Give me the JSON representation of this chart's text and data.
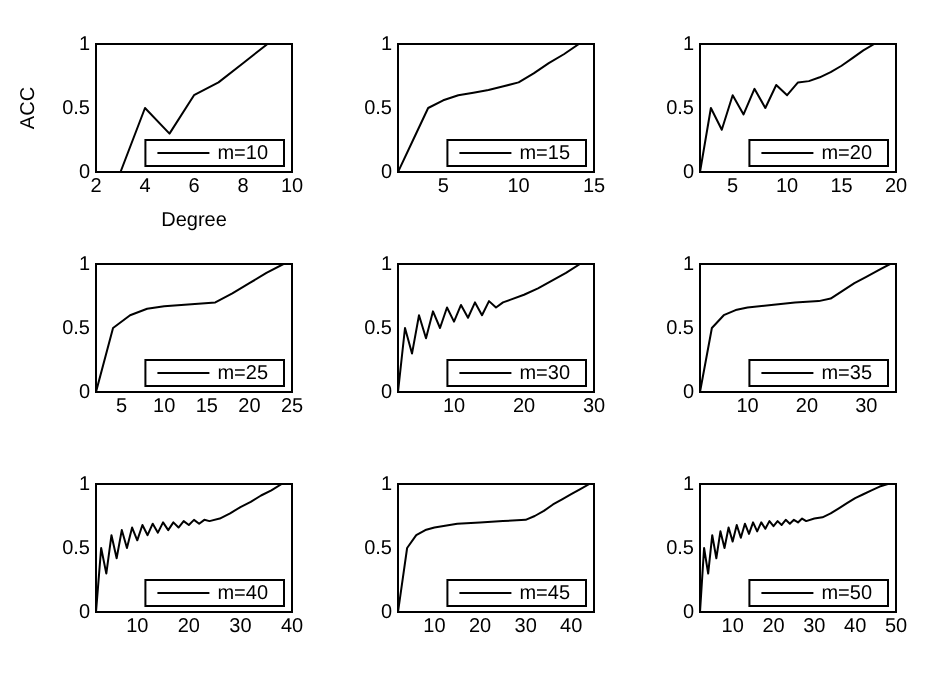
{
  "chart_data": [
    {
      "type": "line",
      "xlabel": "Degree",
      "ylabel": "ACC",
      "x": [
        2,
        3,
        4,
        5,
        6,
        7,
        8,
        9
      ],
      "series": [
        {
          "name": "m=10",
          "color": "#000000",
          "values": [
            0,
            0,
            0.5,
            0.3,
            0.6,
            0.7,
            0.85,
            1
          ]
        }
      ],
      "xlim": [
        2,
        10
      ],
      "xticks": [
        2,
        4,
        6,
        8,
        10
      ],
      "ylim": [
        0,
        1
      ],
      "yticks": [
        0,
        0.5,
        1
      ],
      "legend": "bottom right",
      "grid": false
    },
    {
      "type": "line",
      "x": [
        2,
        3,
        4,
        5,
        6,
        7,
        8,
        9,
        10,
        11,
        12,
        13,
        14
      ],
      "series": [
        {
          "name": "m=15",
          "color": "#000000",
          "values": [
            0,
            0.25,
            0.5,
            0.56,
            0.6,
            0.62,
            0.64,
            0.67,
            0.7,
            0.77,
            0.85,
            0.92,
            1
          ]
        }
      ],
      "xlim": [
        2,
        15
      ],
      "xticks": [
        5,
        10,
        15
      ],
      "ylim": [
        0,
        1
      ],
      "yticks": [
        0,
        0.5,
        1
      ],
      "legend": "bottom right",
      "grid": false
    },
    {
      "type": "line",
      "x": [
        2,
        3,
        4,
        5,
        6,
        7,
        8,
        9,
        10,
        11,
        12,
        13,
        14,
        15,
        16,
        17,
        18
      ],
      "series": [
        {
          "name": "m=20",
          "color": "#000000",
          "values": [
            0,
            0.5,
            0.33,
            0.6,
            0.45,
            0.65,
            0.5,
            0.68,
            0.6,
            0.7,
            0.71,
            0.74,
            0.78,
            0.83,
            0.89,
            0.95,
            1
          ]
        }
      ],
      "xlim": [
        2,
        20
      ],
      "xticks": [
        5,
        10,
        15,
        20
      ],
      "ylim": [
        0,
        1
      ],
      "yticks": [
        0,
        0.5,
        1
      ],
      "legend": "bottom right",
      "grid": false
    },
    {
      "type": "line",
      "x": [
        2,
        4,
        6,
        8,
        10,
        12,
        14,
        16,
        18,
        20,
        22,
        24
      ],
      "series": [
        {
          "name": "m=25",
          "color": "#000000",
          "values": [
            0,
            0.5,
            0.6,
            0.65,
            0.67,
            0.68,
            0.69,
            0.7,
            0.77,
            0.85,
            0.93,
            1
          ]
        }
      ],
      "xlim": [
        2,
        25
      ],
      "xticks": [
        5,
        10,
        15,
        20,
        25
      ],
      "ylim": [
        0,
        1
      ],
      "yticks": [
        0,
        0.5,
        1
      ],
      "legend": "bottom right",
      "grid": false
    },
    {
      "type": "line",
      "x": [
        2,
        3,
        4,
        5,
        6,
        7,
        8,
        9,
        10,
        11,
        12,
        13,
        14,
        15,
        16,
        17,
        18,
        20,
        22,
        24,
        26,
        28
      ],
      "series": [
        {
          "name": "m=30",
          "color": "#000000",
          "values": [
            0,
            0.5,
            0.3,
            0.6,
            0.42,
            0.63,
            0.5,
            0.66,
            0.55,
            0.68,
            0.58,
            0.7,
            0.6,
            0.71,
            0.66,
            0.7,
            0.72,
            0.76,
            0.81,
            0.87,
            0.93,
            1
          ]
        }
      ],
      "xlim": [
        2,
        30
      ],
      "xticks": [
        10,
        20,
        30
      ],
      "ylim": [
        0,
        1
      ],
      "yticks": [
        0,
        0.5,
        1
      ],
      "legend": "bottom right",
      "grid": false
    },
    {
      "type": "line",
      "x": [
        2,
        4,
        6,
        8,
        10,
        14,
        18,
        22,
        24,
        26,
        28,
        30,
        32,
        34
      ],
      "series": [
        {
          "name": "m=35",
          "color": "#000000",
          "values": [
            0,
            0.5,
            0.6,
            0.64,
            0.66,
            0.68,
            0.7,
            0.71,
            0.73,
            0.79,
            0.85,
            0.9,
            0.95,
            1
          ]
        }
      ],
      "xlim": [
        2,
        35
      ],
      "xticks": [
        10,
        20,
        30
      ],
      "ylim": [
        0,
        1
      ],
      "yticks": [
        0,
        0.5,
        1
      ],
      "legend": "bottom right",
      "grid": false
    },
    {
      "type": "line",
      "x": [
        2,
        3,
        4,
        5,
        6,
        7,
        8,
        9,
        10,
        11,
        12,
        13,
        14,
        15,
        16,
        17,
        18,
        19,
        20,
        21,
        22,
        23,
        24,
        26,
        28,
        30,
        32,
        34,
        36,
        38
      ],
      "series": [
        {
          "name": "m=40",
          "color": "#000000",
          "values": [
            0,
            0.5,
            0.3,
            0.6,
            0.42,
            0.64,
            0.5,
            0.66,
            0.56,
            0.68,
            0.6,
            0.69,
            0.62,
            0.7,
            0.64,
            0.7,
            0.66,
            0.71,
            0.68,
            0.72,
            0.69,
            0.72,
            0.71,
            0.73,
            0.77,
            0.82,
            0.86,
            0.91,
            0.95,
            1
          ]
        }
      ],
      "xlim": [
        2,
        40
      ],
      "xticks": [
        10,
        20,
        30,
        40
      ],
      "ylim": [
        0,
        1
      ],
      "yticks": [
        0,
        0.5,
        1
      ],
      "legend": "bottom right",
      "grid": false
    },
    {
      "type": "line",
      "x": [
        2,
        4,
        6,
        8,
        10,
        15,
        20,
        25,
        30,
        32,
        34,
        36,
        38,
        40,
        42,
        44
      ],
      "series": [
        {
          "name": "m=45",
          "color": "#000000",
          "values": [
            0,
            0.5,
            0.6,
            0.64,
            0.66,
            0.69,
            0.7,
            0.71,
            0.72,
            0.75,
            0.79,
            0.84,
            0.88,
            0.92,
            0.96,
            1
          ]
        }
      ],
      "xlim": [
        2,
        45
      ],
      "xticks": [
        10,
        20,
        30,
        40
      ],
      "ylim": [
        0,
        1
      ],
      "yticks": [
        0,
        0.5,
        1
      ],
      "legend": "bottom right",
      "grid": false
    },
    {
      "type": "line",
      "x": [
        2,
        3,
        4,
        5,
        6,
        7,
        8,
        9,
        10,
        11,
        12,
        13,
        14,
        15,
        16,
        17,
        18,
        19,
        20,
        21,
        22,
        23,
        24,
        25,
        26,
        27,
        28,
        30,
        32,
        34,
        36,
        38,
        40,
        42,
        44,
        46,
        48
      ],
      "series": [
        {
          "name": "m=50",
          "color": "#000000",
          "values": [
            0,
            0.5,
            0.3,
            0.6,
            0.42,
            0.63,
            0.5,
            0.66,
            0.55,
            0.68,
            0.58,
            0.69,
            0.61,
            0.7,
            0.63,
            0.7,
            0.65,
            0.71,
            0.67,
            0.71,
            0.68,
            0.72,
            0.69,
            0.72,
            0.7,
            0.73,
            0.71,
            0.73,
            0.74,
            0.77,
            0.81,
            0.85,
            0.89,
            0.92,
            0.95,
            0.98,
            1
          ]
        }
      ],
      "xlim": [
        2,
        50
      ],
      "xticks": [
        10,
        20,
        30,
        40,
        50
      ],
      "ylim": [
        0,
        1
      ],
      "yticks": [
        0,
        0.5,
        1
      ],
      "legend": "bottom right",
      "grid": false
    }
  ]
}
